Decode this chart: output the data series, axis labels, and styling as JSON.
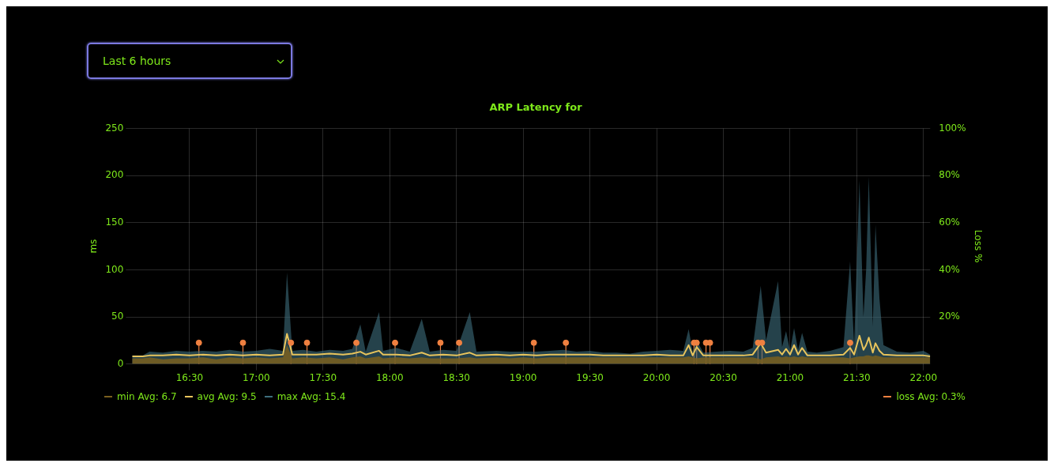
{
  "chart_data": {
    "type": "line",
    "title": "ARP Latency for",
    "ylabel": "ms",
    "y2label": "Loss %",
    "annotations": [
      "Last 6 hours"
    ],
    "x": [
      16.07,
      16.15,
      16.2,
      16.3,
      16.4,
      16.5,
      16.6,
      16.7,
      16.8,
      16.9,
      17.0,
      17.1,
      17.2,
      17.23,
      17.27,
      17.35,
      17.45,
      17.55,
      17.65,
      17.72,
      17.78,
      17.82,
      17.92,
      17.95,
      18.05,
      18.15,
      18.24,
      18.3,
      18.4,
      18.5,
      18.6,
      18.65,
      18.8,
      18.9,
      19.0,
      19.1,
      19.2,
      19.3,
      19.4,
      19.5,
      19.6,
      19.7,
      19.8,
      19.9,
      20.0,
      20.1,
      20.2,
      20.24,
      20.27,
      20.3,
      20.35,
      20.45,
      20.55,
      20.65,
      20.72,
      20.78,
      20.82,
      20.91,
      20.94,
      20.97,
      21.0,
      21.03,
      21.06,
      21.09,
      21.13,
      21.2,
      21.3,
      21.4,
      21.45,
      21.48,
      21.52,
      21.55,
      21.57,
      21.59,
      21.62,
      21.64,
      21.67,
      21.7,
      21.8,
      21.9,
      22.0,
      22.05
    ],
    "series": [
      {
        "name": "min Avg: 6.7",
        "type": "area",
        "color": "#7a5f1f",
        "values": [
          6,
          6,
          7,
          5,
          6,
          6,
          7,
          5,
          7,
          6,
          7,
          6,
          7,
          20,
          6,
          7,
          6,
          7,
          5,
          7,
          8,
          6,
          8,
          6,
          7,
          6,
          7,
          6,
          6,
          6,
          7,
          6,
          7,
          6,
          7,
          6,
          7,
          7,
          7,
          7,
          7,
          7,
          7,
          7,
          7,
          7,
          7,
          8,
          7,
          6,
          7,
          7,
          7,
          7,
          7,
          5,
          7,
          8,
          7,
          8,
          7,
          8,
          7,
          8,
          7,
          7,
          7,
          7,
          6,
          7,
          8,
          8,
          9,
          9,
          8,
          9,
          8,
          7,
          7,
          7,
          7,
          7
        ]
      },
      {
        "name": "avg Avg: 9.5",
        "type": "line",
        "color": "#e8c45c",
        "values": [
          8,
          8,
          9,
          9,
          10,
          9,
          10,
          9,
          10,
          9,
          10,
          9,
          10,
          32,
          10,
          10,
          10,
          11,
          10,
          11,
          13,
          10,
          14,
          10,
          10,
          9,
          12,
          9,
          10,
          9,
          12,
          9,
          10,
          9,
          10,
          9,
          10,
          10,
          10,
          10,
          9,
          9,
          9,
          9,
          10,
          9,
          9,
          20,
          9,
          18,
          9,
          9,
          9,
          9,
          10,
          22,
          12,
          15,
          10,
          16,
          10,
          20,
          10,
          17,
          9,
          9,
          9,
          10,
          17,
          10,
          30,
          15,
          20,
          28,
          12,
          22,
          14,
          10,
          9,
          9,
          9,
          8
        ]
      },
      {
        "name": "max Avg: 15.4",
        "type": "area",
        "color": "#3d6e7d",
        "values": [
          9,
          9,
          13,
          12,
          14,
          13,
          14,
          13,
          15,
          13,
          14,
          16,
          14,
          97,
          14,
          15,
          13,
          15,
          14,
          16,
          42,
          13,
          55,
          14,
          17,
          13,
          48,
          13,
          15,
          14,
          55,
          13,
          14,
          13,
          13,
          13,
          14,
          15,
          13,
          14,
          12,
          12,
          11,
          13,
          14,
          15,
          14,
          37,
          13,
          25,
          12,
          13,
          14,
          13,
          17,
          83,
          25,
          88,
          18,
          35,
          14,
          38,
          15,
          33,
          13,
          12,
          14,
          18,
          109,
          20,
          195,
          50,
          100,
          199,
          40,
          148,
          69,
          20,
          13,
          12,
          14,
          10
        ]
      },
      {
        "name": "loss Avg: 0.3%",
        "type": "lollipop",
        "axis": "y2",
        "marker": "circle",
        "color": "#f08040",
        "x": [
          16.57,
          16.9,
          17.26,
          17.38,
          17.75,
          18.04,
          18.38,
          18.52,
          19.08,
          19.32,
          20.28,
          20.3,
          20.37,
          20.4,
          20.76,
          20.79,
          21.45
        ],
        "values": [
          9,
          9,
          9,
          9,
          9,
          9,
          9,
          9,
          9,
          9,
          9,
          9,
          9,
          9,
          9,
          9,
          9
        ]
      }
    ],
    "xlim": [
      16.07,
      22.05
    ],
    "xticks": [
      {
        "value": 16.5,
        "label": "16:30"
      },
      {
        "value": 17,
        "label": "17:00"
      },
      {
        "value": 17.5,
        "label": "17:30"
      },
      {
        "value": 18,
        "label": "18:00"
      },
      {
        "value": 18.5,
        "label": "18:30"
      },
      {
        "value": 19,
        "label": "19:00"
      },
      {
        "value": 19.5,
        "label": "19:30"
      },
      {
        "value": 20,
        "label": "20:00"
      },
      {
        "value": 20.5,
        "label": "20:30"
      },
      {
        "value": 21,
        "label": "21:00"
      },
      {
        "value": 21.5,
        "label": "21:30"
      },
      {
        "value": 22,
        "label": "22:00"
      }
    ],
    "ylim": [
      0,
      250
    ],
    "yticks": [
      0,
      50,
      100,
      150,
      200,
      250
    ],
    "y2lim": [
      0,
      100
    ],
    "y2ticks": [
      {
        "value": 20,
        "label": "20%"
      },
      {
        "value": 40,
        "label": "40%"
      },
      {
        "value": 60,
        "label": "60%"
      },
      {
        "value": 80,
        "label": "80%"
      },
      {
        "value": 100,
        "label": "100%"
      }
    ],
    "grid": true,
    "legend": "bottom"
  }
}
